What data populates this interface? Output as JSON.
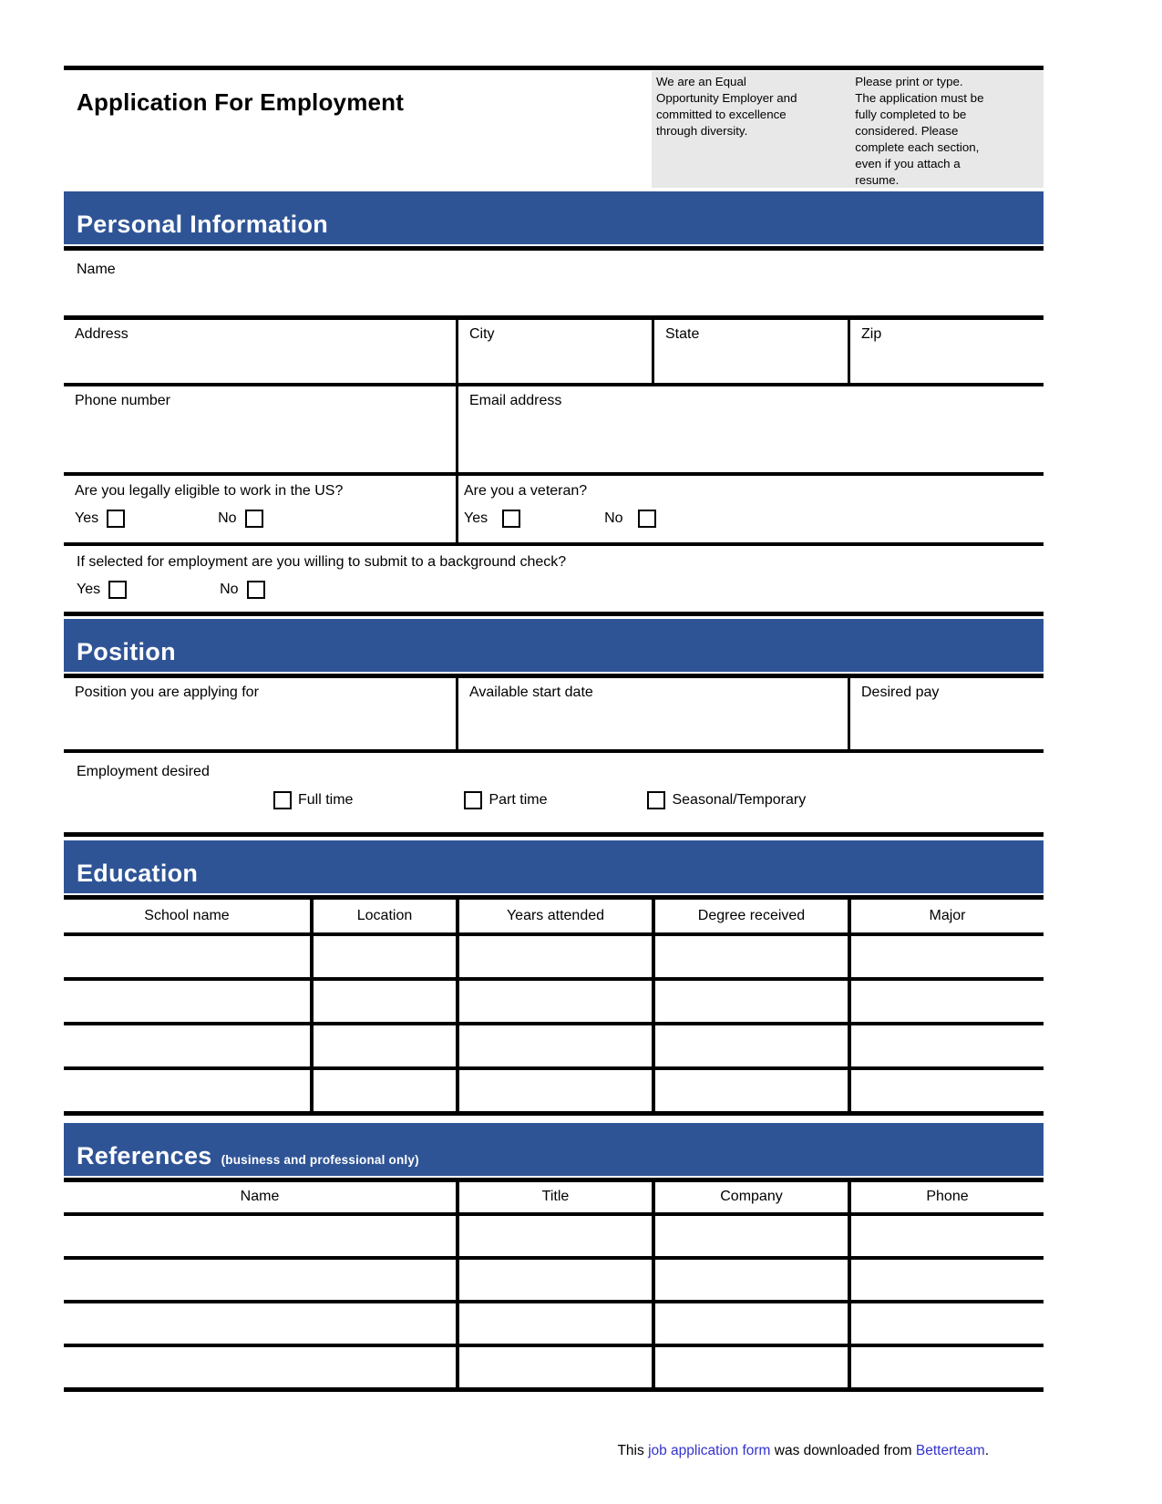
{
  "document": {
    "title": "Application For Employment",
    "notices": {
      "equal_opportunity": "We are an Equal\nOpportunity Employer and\ncommitted to excellence\nthrough diversity.",
      "instructions": "Please print or type.\nThe application must be\nfully completed to be\nconsidered. Please\ncomplete each section,\neven if you attach a\nresume."
    }
  },
  "personal": {
    "heading": "Personal Information",
    "fields": {
      "name": "Name",
      "address": "Address",
      "city": "City",
      "state": "State",
      "zip": "Zip",
      "phone": "Phone number",
      "email": "Email address"
    },
    "questions": {
      "eligible": "Are you legally eligible to work in the US?",
      "veteran": "Are you a veteran?",
      "background": "If selected for employment are you willing to submit to a background check?"
    },
    "yes": "Yes",
    "no": "No"
  },
  "position": {
    "heading": "Position",
    "fields": {
      "applying_for": "Position you are applying for",
      "start_date": "Available start date",
      "desired_pay": "Desired pay"
    },
    "employment_desired": {
      "label": "Employment desired",
      "options": [
        "Full time",
        "Part time",
        "Seasonal/Temporary"
      ]
    }
  },
  "education": {
    "heading": "Education",
    "columns": [
      "School name",
      "Location",
      "Years attended",
      "Degree received",
      "Major"
    ],
    "empty_rows": 4
  },
  "references": {
    "heading": "References",
    "note": "(business and professional only)",
    "columns": [
      "Name",
      "Title",
      "Company",
      "Phone"
    ],
    "empty_rows": 4
  },
  "footer": {
    "prefix": "This ",
    "form_link": "job application form",
    "middle": " was downloaded from ",
    "site_link": "Betterteam",
    "suffix": "."
  },
  "colors": {
    "section_bar": "#2F5496",
    "notice_bg": "#E8E8E8",
    "link": "#3333CC"
  }
}
